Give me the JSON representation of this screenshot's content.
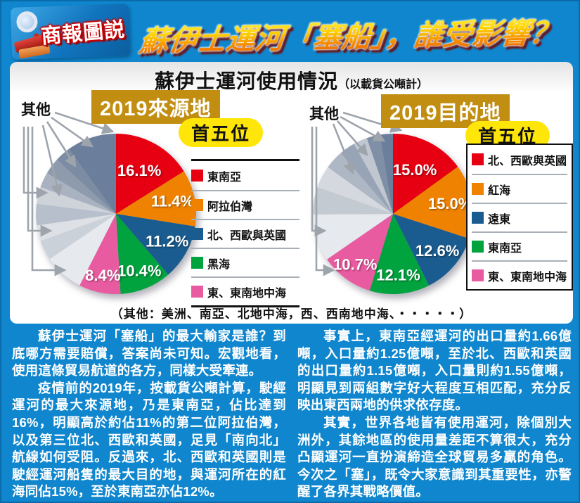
{
  "header": {
    "logo_text": "商報圖説",
    "title": "蘇伊士運河「塞船」，誰受影響？"
  },
  "panel": {
    "title": "蘇伊士運河使用情況",
    "title_suffix": "（以載貨公噸計）",
    "footnote": "（其他：美洲、南亞、北地中海，西、西南地中海、・・・・・）"
  },
  "colors": {
    "red": "#E60012",
    "orange": "#EF8200",
    "blue": "#1A5C8F",
    "green": "#00A33E",
    "pink": "#E95BA0",
    "background": "#0F86CD",
    "heading_gold": "#C28E12",
    "pill_yellow": "#FFE60A"
  },
  "chart_data": [
    {
      "type": "pie",
      "title": "2019來源地",
      "subtitle": "首五位",
      "unit": "以載貨公噸計",
      "labels": [
        "東南亞",
        "阿拉伯灣",
        "北、西歐與英國",
        "黑海",
        "東、東南地中海",
        "其他"
      ],
      "values": [
        16.1,
        11.4,
        11.2,
        10.4,
        8.4,
        42.5
      ],
      "note": "其他：美洲、南亞、北地中海，西、西南地中海"
    },
    {
      "type": "pie",
      "title": "2019目的地",
      "subtitle": "首五位",
      "unit": "以載貨公噸計",
      "labels": [
        "北、西歐與英國",
        "紅海",
        "遠東",
        "東南亞",
        "東、東南地中海",
        "其他"
      ],
      "values": [
        15.0,
        15.0,
        12.6,
        12.1,
        10.7,
        34.6
      ],
      "note": "其他：美洲、南亞、北地中海，西、西南地中海"
    }
  ],
  "charts": {
    "left": {
      "heading": "2019來源地",
      "subheading": "首五位",
      "others_label": "其他",
      "slices": [
        {
          "label": "東南亞",
          "value": 16.1,
          "color": "#E60012",
          "pct": "16.1%"
        },
        {
          "label": "阿拉伯灣",
          "value": 11.4,
          "color": "#EF8200",
          "pct": "11.4%"
        },
        {
          "label": "北、西歐與英國",
          "value": 11.2,
          "color": "#1A5C8F",
          "pct": "11.2%"
        },
        {
          "label": "黑海",
          "value": 10.4,
          "color": "#00A33E",
          "pct": "10.4%"
        },
        {
          "label": "東、東南地中海",
          "value": 8.4,
          "color": "#E95BA0",
          "pct": "8.4%"
        }
      ],
      "others_breakdown": [
        {
          "value": 8.0,
          "color": "#E6E9ED"
        },
        {
          "value": 4.0,
          "color": "#CBD1D8"
        },
        {
          "value": 3.2,
          "color": "#DDE0E5"
        },
        {
          "value": 4.3,
          "color": "#B6BFCB"
        },
        {
          "value": 3.4,
          "color": "#CED3DA"
        },
        {
          "value": 3.1,
          "color": "#A9B2C0"
        },
        {
          "value": 3.3,
          "color": "#8E9BAD"
        },
        {
          "value": 3.2,
          "color": "#7C8CA2"
        },
        {
          "value": 10.0,
          "color": "#6B7E9B"
        }
      ],
      "legend": [
        {
          "label": "東南亞",
          "color": "#E60012"
        },
        {
          "label": "阿拉伯灣",
          "color": "#EF8200"
        },
        {
          "label": "北、西歐與英國",
          "color": "#1A5C8F"
        },
        {
          "label": "黑海",
          "color": "#00A33E"
        },
        {
          "label": "東、東南地中海",
          "color": "#E95BA0"
        }
      ]
    },
    "right": {
      "heading": "2019目的地",
      "subheading": "首五位",
      "others_label": "其他",
      "slices": [
        {
          "label": "北、西歐與英國",
          "value": 15.0,
          "color": "#E60012",
          "pct": "15.0%"
        },
        {
          "label": "紅海",
          "value": 15.0,
          "color": "#EF8200",
          "pct": "15.0%"
        },
        {
          "label": "遠東",
          "value": 12.6,
          "color": "#1A5C8F",
          "pct": "12.6%"
        },
        {
          "label": "東南亞",
          "value": 12.1,
          "color": "#00A33E",
          "pct": "12.1%"
        },
        {
          "label": "東、東南地中海",
          "value": 10.7,
          "color": "#E95BA0",
          "pct": "10.7%"
        }
      ],
      "others_breakdown": [
        {
          "value": 9.5,
          "color": "#E6E9ED"
        },
        {
          "value": 5.5,
          "color": "#C3CAD2"
        },
        {
          "value": 4.5,
          "color": "#D5D9DF"
        },
        {
          "value": 3.8,
          "color": "#AEB7C4"
        },
        {
          "value": 3.2,
          "color": "#97A4B5"
        },
        {
          "value": 2.8,
          "color": "#C0C7D0"
        },
        {
          "value": 2.7,
          "color": "#7F90A6"
        },
        {
          "value": 2.6,
          "color": "#6B7E9B"
        }
      ],
      "legend": [
        {
          "label": "北、西歐與英國",
          "color": "#E60012"
        },
        {
          "label": "紅海",
          "color": "#EF8200"
        },
        {
          "label": "遠東",
          "color": "#1A5C8F"
        },
        {
          "label": "東南亞",
          "color": "#00A33E"
        },
        {
          "label": "東、東南地中海",
          "color": "#E95BA0"
        }
      ]
    }
  },
  "article": {
    "left": [
      "蘇伊士運河「塞船」的最大輸家是誰？到底哪方需要賠償，答案尚未可知。宏觀地看，使用這條貿易航道的各方，同樣大受牽連。",
      "疫情前的2019年，按載貨公噸計算，駛經運河的最大來源地，乃是東南亞，佔比達到16%，明顯高於約佔11%的第二位阿拉伯灣，以及第三位北、西歐和英國，足見「南向北」航線如何受阻。反過來，北、西歐和英國則是駛經運河船隻的最大目的地，與運河所在的紅海同佔15%，至於東南亞亦佔12%。"
    ],
    "right": [
      "事實上，東南亞經運河的出口量約1.66億噸，入口量約1.25億噸，至於北、西歐和英國的出口量約1.15億噸，入口量則約1.55億噸，明顯見到兩組數字好大程度互相匹配，充分反映出東西兩地的供求依存度。",
      "其實，世界各地皆有使用運河，除個別大洲外，其餘地區的使用量差距不算很大，充分凸顯運河一直扮演締造全球貿易多贏的角色。今次之「塞」，既令大家意識到其重要性，亦警醒了各界其戰略價值。"
    ]
  }
}
